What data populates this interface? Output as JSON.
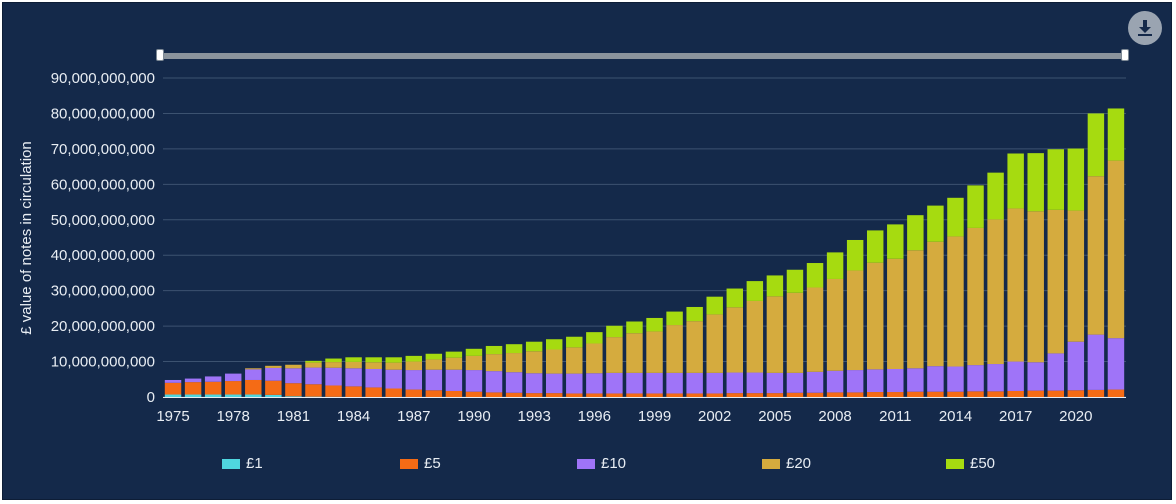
{
  "download": {
    "icon": "download-icon"
  },
  "legend": [
    {
      "label": "£1",
      "color": "#4fd6df"
    },
    {
      "label": "£5",
      "color": "#f56b15"
    },
    {
      "label": "£10",
      "color": "#9f74f8"
    },
    {
      "label": "£20",
      "color": "#d5ab3e"
    },
    {
      "label": "£50",
      "color": "#a6db10"
    }
  ],
  "chart_data": {
    "type": "bar",
    "stacked": true,
    "ylabel": "£ value of notes in circulation",
    "xlabel": "",
    "ylim": [
      0,
      90000000000
    ],
    "y_ticks": [
      "0",
      "10,000,000,000",
      "20,000,000,000",
      "30,000,000,000",
      "40,000,000,000",
      "50,000,000,000",
      "60,000,000,000",
      "70,000,000,000",
      "80,000,000,000",
      "90,000,000,000"
    ],
    "x_ticks": [
      "1975",
      "1978",
      "1981",
      "1984",
      "1987",
      "1990",
      "1993",
      "1996",
      "1999",
      "2002",
      "2005",
      "2008",
      "2011",
      "2014",
      "2017",
      "2020"
    ],
    "categories": [
      "1975",
      "1976",
      "1977",
      "1978",
      "1979",
      "1980",
      "1981",
      "1982",
      "1983",
      "1984",
      "1985",
      "1986",
      "1987",
      "1988",
      "1989",
      "1990",
      "1991",
      "1992",
      "1993",
      "1994",
      "1995",
      "1996",
      "1997",
      "1998",
      "1999",
      "2000",
      "2001",
      "2002",
      "2003",
      "2004",
      "2005",
      "2006",
      "2007",
      "2008",
      "2009",
      "2010",
      "2011",
      "2012",
      "2013",
      "2014",
      "2015",
      "2016",
      "2017",
      "2018",
      "2019",
      "2020",
      "2021",
      "2022"
    ],
    "grid": true,
    "legend_position": "bottom",
    "series": [
      {
        "name": "£1",
        "color": "#4fd6df",
        "values": [
          0.7,
          0.7,
          0.7,
          0.7,
          0.7,
          0.6,
          0.2,
          0.1,
          0.05,
          0,
          0,
          0,
          0,
          0,
          0,
          0,
          0,
          0,
          0,
          0,
          0,
          0,
          0,
          0,
          0,
          0,
          0,
          0,
          0,
          0,
          0,
          0,
          0,
          0,
          0,
          0,
          0,
          0,
          0,
          0,
          0,
          0,
          0,
          0,
          0,
          0,
          0,
          0
        ]
      },
      {
        "name": "£5",
        "color": "#f56b15",
        "values": [
          3.3,
          3.5,
          3.6,
          3.8,
          4.1,
          4.0,
          3.7,
          3.5,
          3.2,
          3.0,
          2.7,
          2.4,
          2.1,
          1.9,
          1.7,
          1.5,
          1.3,
          1.2,
          1.1,
          1.1,
          1.0,
          1.0,
          1.0,
          1.0,
          1.0,
          1.0,
          1.0,
          1.0,
          1.1,
          1.1,
          1.1,
          1.2,
          1.2,
          1.3,
          1.3,
          1.4,
          1.4,
          1.5,
          1.5,
          1.5,
          1.6,
          1.6,
          1.7,
          1.8,
          1.8,
          1.9,
          2.0,
          2.1
        ]
      },
      {
        "name": "£10",
        "color": "#9f74f8",
        "values": [
          0.8,
          1.0,
          1.5,
          2.1,
          3.0,
          3.6,
          4.2,
          4.7,
          5.0,
          5.1,
          5.2,
          5.3,
          5.5,
          5.8,
          6.0,
          6.1,
          6.0,
          5.8,
          5.6,
          5.5,
          5.6,
          5.7,
          5.8,
          5.8,
          5.8,
          5.8,
          5.8,
          5.8,
          5.8,
          5.8,
          5.7,
          5.6,
          5.9,
          6.1,
          6.3,
          6.4,
          6.5,
          6.6,
          7.2,
          7.1,
          7.4,
          7.7,
          8.3,
          8.0,
          10.5,
          13.7,
          15.6,
          14.5
        ]
      },
      {
        "name": "£20",
        "color": "#d5ab3e",
        "values": [
          0,
          0,
          0,
          0,
          0.3,
          0.6,
          1.0,
          1.4,
          1.6,
          1.8,
          1.9,
          2.0,
          2.4,
          2.9,
          3.4,
          4.0,
          4.8,
          5.4,
          6.2,
          6.8,
          7.4,
          8.4,
          10.1,
          11.2,
          11.7,
          13.5,
          14.6,
          16.5,
          18.4,
          20.2,
          21.6,
          22.6,
          23.8,
          25.9,
          28.1,
          30.1,
          31.1,
          33.3,
          35.1,
          36.7,
          38.7,
          40.8,
          43.2,
          42.6,
          40.5,
          37.0,
          44.7,
          50.1
        ]
      },
      {
        "name": "£50",
        "color": "#a6db10",
        "values": [
          0,
          0,
          0,
          0,
          0,
          0,
          0,
          0.5,
          1.0,
          1.3,
          1.4,
          1.5,
          1.6,
          1.6,
          1.7,
          2.0,
          2.3,
          2.5,
          2.7,
          2.9,
          3.0,
          3.2,
          3.2,
          3.3,
          3.8,
          3.8,
          4.0,
          5.0,
          5.3,
          5.6,
          5.9,
          6.5,
          6.9,
          7.5,
          8.6,
          9.1,
          9.7,
          9.9,
          10.2,
          10.9,
          12.0,
          13.2,
          15.5,
          16.4,
          17.1,
          17.5,
          17.7,
          14.7
        ]
      }
    ]
  }
}
